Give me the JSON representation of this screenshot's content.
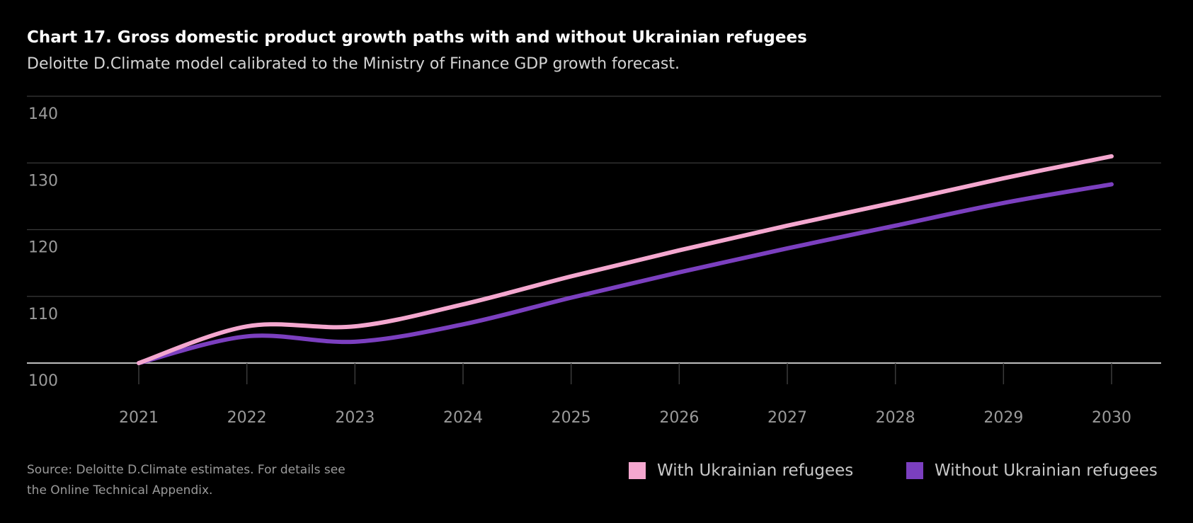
{
  "header": {
    "title": "Chart 17. Gross domestic product growth paths with and without Ukrainian refugees",
    "subtitle": "Deloitte D.Climate model calibrated to the Ministry of Finance GDP growth forecast."
  },
  "footer": {
    "source_line1": "Source: Deloitte D.Climate estimates. For details see",
    "source_line2": "the Online Technical Appendix."
  },
  "legend": [
    {
      "label": "With Ukrainian refugees",
      "color": "#f4a7cf"
    },
    {
      "label": "Without Ukrainian refugees",
      "color": "#7b3fbf"
    }
  ],
  "chart_data": {
    "type": "line",
    "x": [
      2021,
      2022,
      2023,
      2024,
      2025,
      2026,
      2027,
      2028,
      2029,
      2030
    ],
    "ylim": [
      100,
      140
    ],
    "yticks": [
      100,
      110,
      120,
      130,
      140
    ],
    "grid": true,
    "legend_position": "bottom-right",
    "series": [
      {
        "name": "With Ukrainian refugees",
        "color": "#f4a7cf",
        "values": [
          100,
          105.5,
          105.5,
          108.8,
          113.0,
          116.9,
          120.6,
          124.1,
          127.7,
          131.0
        ]
      },
      {
        "name": "Without Ukrainian refugees",
        "color": "#7b3fbf",
        "values": [
          100,
          104.0,
          103.2,
          105.8,
          109.8,
          113.6,
          117.2,
          120.6,
          124.0,
          126.8
        ]
      }
    ]
  }
}
